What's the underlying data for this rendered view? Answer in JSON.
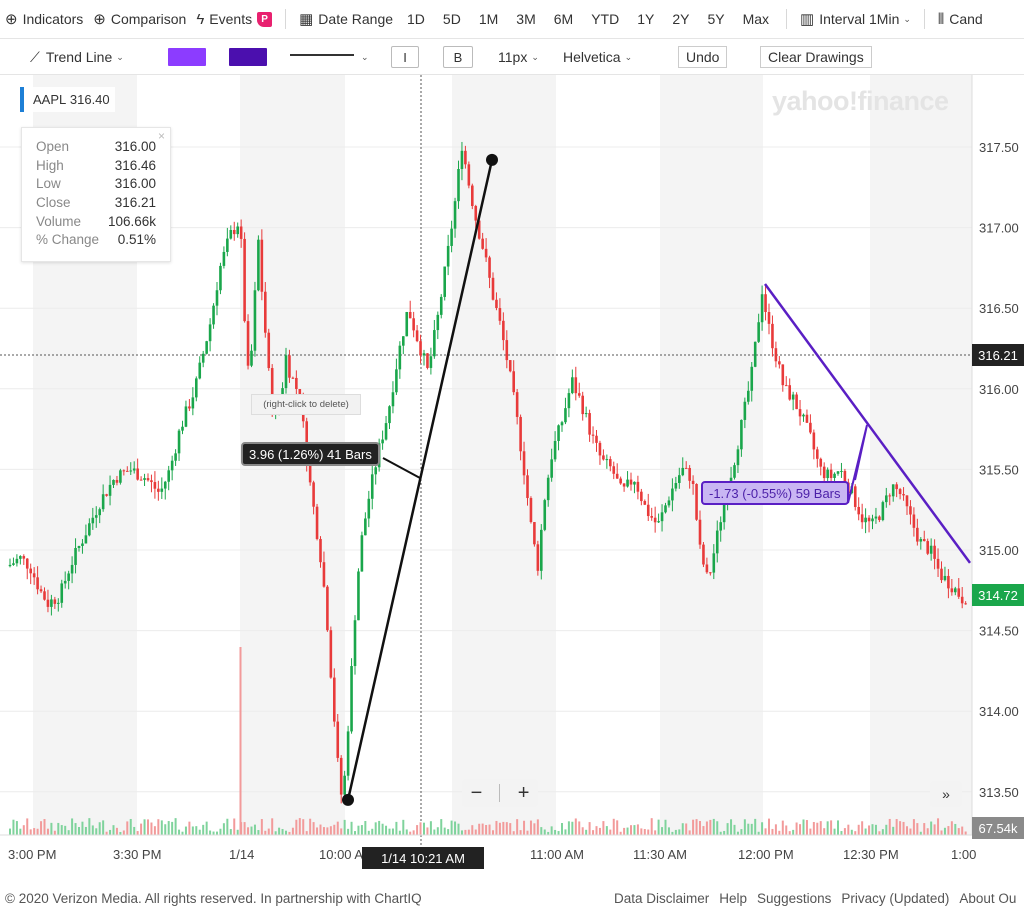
{
  "toolbar": {
    "indicators": "Indicators",
    "comparison": "Comparison",
    "events": "Events",
    "events_badge": "P",
    "date_range": "Date Range",
    "ranges": [
      "1D",
      "5D",
      "1M",
      "3M",
      "6M",
      "YTD",
      "1Y",
      "2Y",
      "5Y",
      "Max"
    ],
    "interval_label": "Interval",
    "interval_value": "1Min",
    "chart_type": "Cand"
  },
  "drawing": {
    "tool": "Trend Line",
    "fill_color": "#8c3cff",
    "line_color": "#4b0fae",
    "italic": "I",
    "bold": "B",
    "font_size": "11px",
    "font": "Helvetica",
    "undo": "Undo",
    "clear": "Clear Drawings"
  },
  "symbol": {
    "ticker": "AAPL",
    "price": "316.40"
  },
  "ohlc": [
    {
      "k": "Open",
      "v": "316.00"
    },
    {
      "k": "High",
      "v": "316.46"
    },
    {
      "k": "Low",
      "v": "316.00"
    },
    {
      "k": "Close",
      "v": "316.21"
    },
    {
      "k": "Volume",
      "v": "106.66k"
    },
    {
      "k": "% Change",
      "v": "0.51%"
    }
  ],
  "annotations": {
    "measure_black": "3.96 (1.26%) 41 Bars",
    "measure_purple": "-1.73 (-0.55%) 59 Bars",
    "delete_hint": "(right-click to delete)",
    "crosshair_price": "316.21",
    "last_price": "314.72",
    "volume_label": "67.54k",
    "crosshair_time": "1/14 10:21 AM",
    "watermark": "yahoo!finance"
  },
  "zoom": {
    "minus": "−",
    "plus": "+",
    "forward": "»"
  },
  "footer": {
    "copyright": "© 2020 Verizon Media. All rights reserved. In partnership with ChartIQ",
    "links": [
      "Data Disclaimer",
      "Help",
      "Suggestions",
      "Privacy (Updated)",
      "About Ou"
    ]
  },
  "chart_data": {
    "type": "candlestick",
    "ylim": [
      313.3,
      317.75
    ],
    "y_ticks": [
      313.5,
      314.0,
      314.5,
      315.0,
      315.5,
      316.0,
      316.5,
      317.0,
      317.5
    ],
    "y_tick_labels": [
      "313.50",
      "314.00",
      "314.50",
      "315.00",
      "315.50",
      "316.00",
      "316.50",
      "317.00",
      "317.50"
    ],
    "x_tick_labels": [
      "3:00 PM",
      "3:30 PM",
      "1/14",
      "10:00 A",
      "11:00 AM",
      "11:30 AM",
      "12:00 PM",
      "12:30 PM",
      "1:00"
    ],
    "colors": {
      "up": "#1aa64b",
      "down": "#e83a3a",
      "trend_black": "#111111",
      "trend_purple": "#5a1fc4"
    },
    "path": [
      [
        0,
        314.72
      ],
      [
        8,
        314.9
      ],
      [
        20,
        314.95
      ],
      [
        30,
        314.9
      ],
      [
        40,
        314.75
      ],
      [
        48,
        314.67
      ],
      [
        60,
        314.72
      ],
      [
        70,
        314.9
      ],
      [
        85,
        315.1
      ],
      [
        100,
        315.3
      ],
      [
        115,
        315.45
      ],
      [
        130,
        315.5
      ],
      [
        145,
        315.45
      ],
      [
        160,
        315.35
      ],
      [
        170,
        315.5
      ],
      [
        180,
        315.75
      ],
      [
        195,
        316.0
      ],
      [
        210,
        316.4
      ],
      [
        220,
        316.75
      ],
      [
        230,
        316.95
      ],
      [
        240,
        317.05
      ],
      [
        244,
        316.5
      ],
      [
        248,
        316.1
      ],
      [
        252,
        316.25
      ],
      [
        256,
        316.7
      ],
      [
        258,
        316.95
      ],
      [
        262,
        316.6
      ],
      [
        266,
        316.3
      ],
      [
        270,
        316.0
      ],
      [
        274,
        315.8
      ],
      [
        282,
        316.0
      ],
      [
        286,
        316.2
      ],
      [
        290,
        316.1
      ],
      [
        300,
        315.95
      ],
      [
        308,
        315.5
      ],
      [
        315,
        315.2
      ],
      [
        322,
        314.9
      ],
      [
        328,
        314.5
      ],
      [
        333,
        314.05
      ],
      [
        337,
        313.75
      ],
      [
        340,
        313.45
      ],
      [
        345,
        313.6
      ],
      [
        350,
        314.1
      ],
      [
        355,
        314.6
      ],
      [
        360,
        315.0
      ],
      [
        368,
        315.3
      ],
      [
        378,
        315.6
      ],
      [
        388,
        315.85
      ],
      [
        398,
        316.2
      ],
      [
        408,
        316.5
      ],
      [
        418,
        316.3
      ],
      [
        428,
        316.1
      ],
      [
        438,
        316.45
      ],
      [
        448,
        316.85
      ],
      [
        456,
        317.2
      ],
      [
        462,
        317.52
      ],
      [
        468,
        317.3
      ],
      [
        476,
        317.05
      ],
      [
        484,
        316.85
      ],
      [
        492,
        316.6
      ],
      [
        500,
        316.4
      ],
      [
        508,
        316.15
      ],
      [
        516,
        315.85
      ],
      [
        524,
        315.5
      ],
      [
        532,
        315.1
      ],
      [
        538,
        314.9
      ],
      [
        544,
        315.3
      ],
      [
        552,
        315.6
      ],
      [
        562,
        315.8
      ],
      [
        572,
        316.05
      ],
      [
        582,
        315.9
      ],
      [
        592,
        315.7
      ],
      [
        602,
        315.55
      ],
      [
        612,
        315.5
      ],
      [
        622,
        315.35
      ],
      [
        634,
        315.45
      ],
      [
        646,
        315.25
      ],
      [
        658,
        315.15
      ],
      [
        670,
        315.35
      ],
      [
        682,
        315.5
      ],
      [
        692,
        315.45
      ],
      [
        700,
        315.0
      ],
      [
        708,
        314.8
      ],
      [
        716,
        315.05
      ],
      [
        724,
        315.3
      ],
      [
        734,
        315.55
      ],
      [
        744,
        315.85
      ],
      [
        752,
        316.1
      ],
      [
        758,
        316.4
      ],
      [
        762,
        316.62
      ],
      [
        768,
        316.4
      ],
      [
        776,
        316.2
      ],
      [
        784,
        316.0
      ],
      [
        792,
        315.95
      ],
      [
        800,
        315.85
      ],
      [
        810,
        315.7
      ],
      [
        820,
        315.5
      ],
      [
        830,
        315.45
      ],
      [
        840,
        315.5
      ],
      [
        852,
        315.35
      ],
      [
        862,
        315.2
      ],
      [
        872,
        315.15
      ],
      [
        882,
        315.25
      ],
      [
        892,
        315.4
      ],
      [
        900,
        315.35
      ],
      [
        910,
        315.2
      ],
      [
        920,
        315.05
      ],
      [
        930,
        315.0
      ],
      [
        940,
        314.85
      ],
      [
        952,
        314.78
      ],
      [
        962,
        314.7
      ],
      [
        972,
        314.72
      ]
    ]
  }
}
